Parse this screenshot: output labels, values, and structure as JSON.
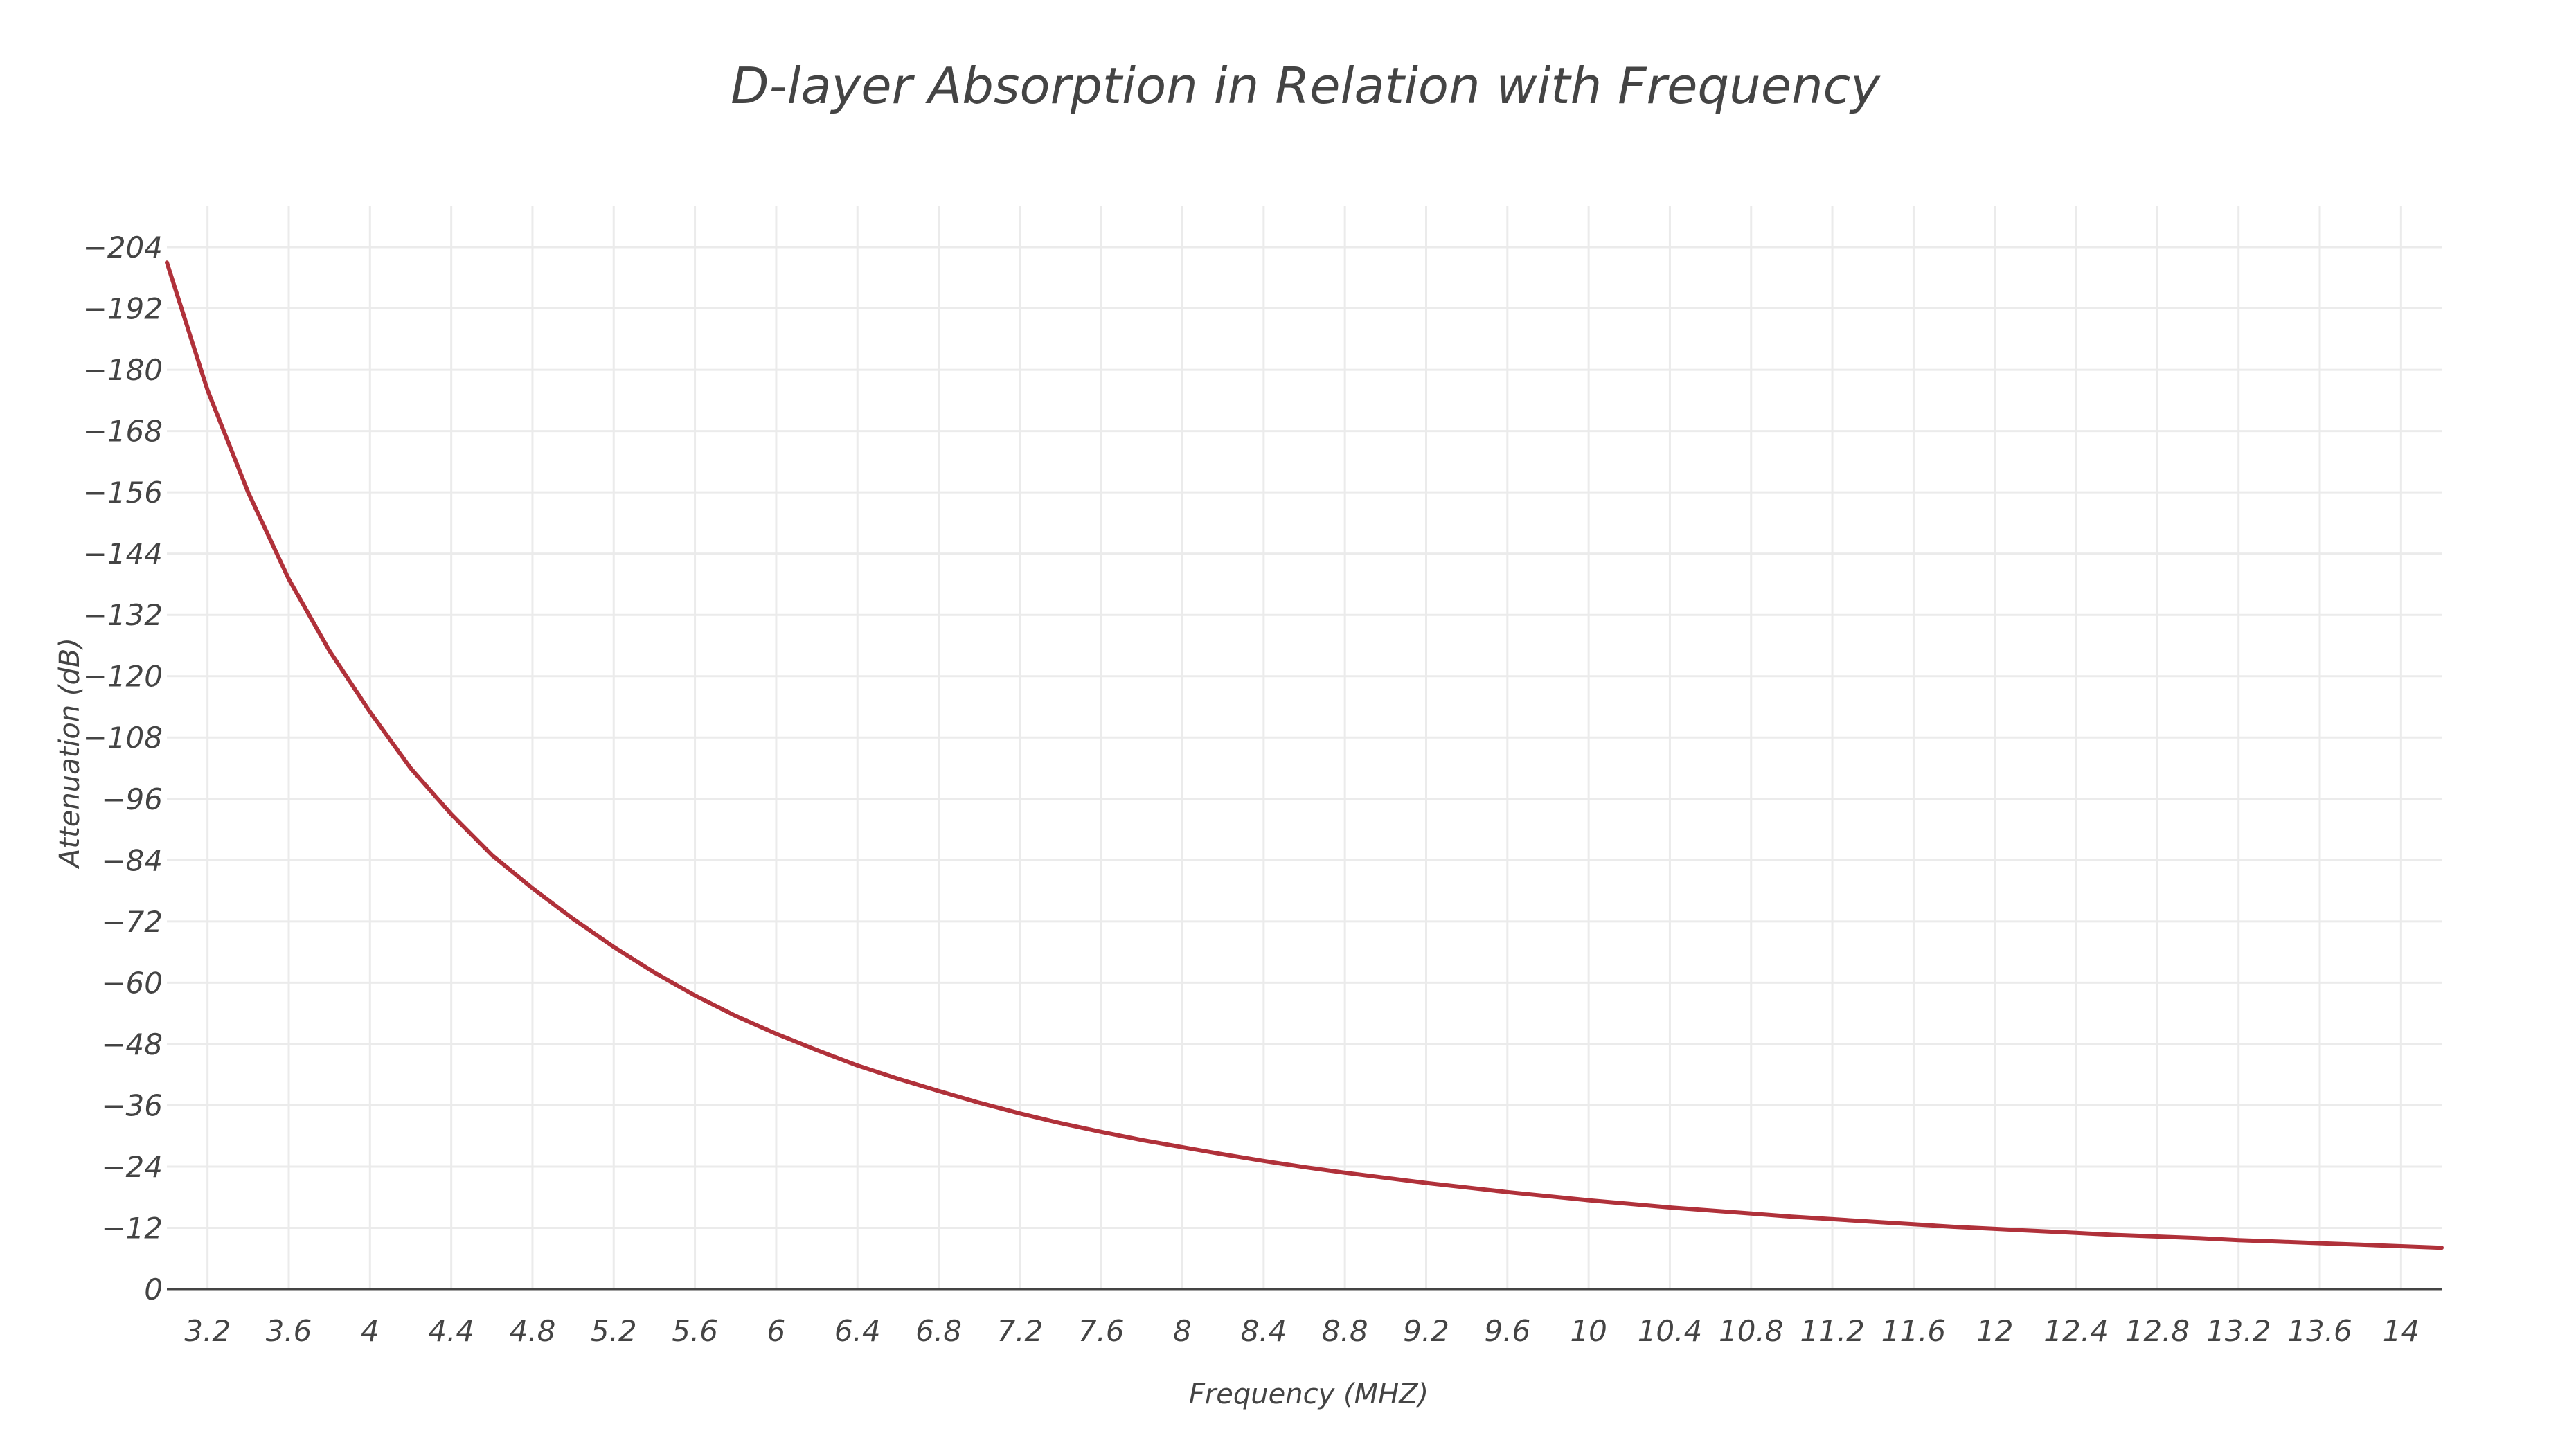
{
  "chart_data": {
    "type": "line",
    "title": "D-layer Absorption in Relation with Frequency",
    "xlabel": "Frequency (MHZ)",
    "ylabel": "Attenuation (dB)",
    "xlim": [
      3.0,
      14.2
    ],
    "ylim": [
      0,
      -212
    ],
    "y_axis_reversed": true,
    "grid": true,
    "x_ticks": [
      3.2,
      3.6,
      4,
      4.4,
      4.8,
      5.2,
      5.6,
      6,
      6.4,
      6.8,
      7.2,
      7.6,
      8,
      8.4,
      8.8,
      9.2,
      9.6,
      10,
      10.4,
      10.8,
      11.2,
      11.6,
      12,
      12.4,
      12.8,
      13.2,
      13.6,
      14
    ],
    "x_tick_labels": [
      "3.2",
      "3.6",
      "4",
      "4.4",
      "4.8",
      "5.2",
      "5.6",
      "6",
      "6.4",
      "6.8",
      "7.2",
      "7.6",
      "8",
      "8.4",
      "8.8",
      "9.2",
      "9.6",
      "10",
      "10.4",
      "10.8",
      "11.2",
      "11.6",
      "12",
      "12.4",
      "12.8",
      "13.2",
      "13.6",
      "14"
    ],
    "y_ticks": [
      0,
      -12,
      -24,
      -36,
      -48,
      -60,
      -72,
      -84,
      -96,
      -108,
      -120,
      -132,
      -144,
      -156,
      -168,
      -180,
      -192,
      -204
    ],
    "y_tick_labels": [
      "0",
      "−12",
      "−24",
      "−36",
      "−48",
      "−60",
      "−72",
      "−84",
      "−96",
      "−108",
      "−120",
      "−132",
      "−144",
      "−156",
      "−168",
      "−180",
      "−192",
      "−204"
    ],
    "series": [
      {
        "color": "#b0313a",
        "x": [
          3.0,
          3.2,
          3.4,
          3.6,
          3.8,
          4.0,
          4.2,
          4.4,
          4.6,
          4.8,
          5.0,
          5.2,
          5.4,
          5.6,
          5.8,
          6.0,
          6.2,
          6.4,
          6.6,
          6.8,
          7.0,
          7.2,
          7.4,
          7.6,
          7.8,
          8.0,
          8.2,
          8.4,
          8.6,
          8.8,
          9.0,
          9.2,
          9.4,
          9.6,
          9.8,
          10.0,
          10.2,
          10.4,
          10.6,
          10.8,
          11.0,
          11.2,
          11.4,
          11.6,
          11.8,
          12.0,
          12.2,
          12.4,
          12.6,
          12.8,
          13.0,
          13.2,
          13.4,
          13.6,
          13.8,
          14.0,
          14.2
        ],
        "y": [
          -201,
          -176,
          -156,
          -139,
          -125,
          -113,
          -102,
          -93,
          -85,
          -78.5,
          -72.5,
          -67,
          -62,
          -57.5,
          -53.5,
          -50,
          -46.8,
          -43.8,
          -41.2,
          -38.8,
          -36.5,
          -34.4,
          -32.5,
          -30.8,
          -29.2,
          -27.8,
          -26.4,
          -25.1,
          -23.9,
          -22.8,
          -21.8,
          -20.8,
          -19.9,
          -19.0,
          -18.2,
          -17.4,
          -16.7,
          -16.0,
          -15.4,
          -14.8,
          -14.2,
          -13.7,
          -13.2,
          -12.7,
          -12.2,
          -11.8,
          -11.4,
          -11.0,
          -10.6,
          -10.3,
          -10.0,
          -9.6,
          -9.3,
          -9.0,
          -8.7,
          -8.4,
          -8.1
        ]
      }
    ]
  }
}
